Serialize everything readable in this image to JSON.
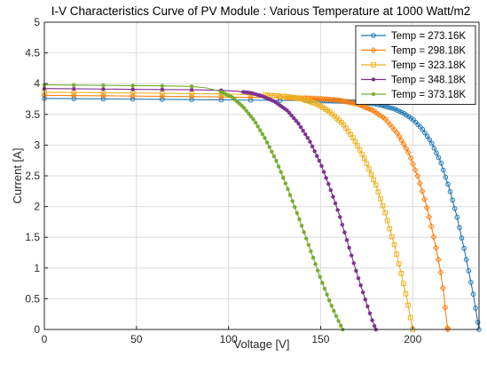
{
  "chart_data": {
    "type": "line",
    "title": "I-V Characteristics Curve of PV Module : Various Temperature at 1000 Watt/m2",
    "xlabel": "Voltage [V]",
    "ylabel": "Current [A]",
    "xlim": [
      0,
      236
    ],
    "ylim": [
      0,
      5
    ],
    "xticks": [
      "0",
      "50",
      "100",
      "150",
      "200"
    ],
    "xtick_values": [
      0,
      50,
      100,
      150,
      200
    ],
    "yticks": [
      "0",
      "0.5",
      "1",
      "1.5",
      "2",
      "2.5",
      "3",
      "3.5",
      "4",
      "4.5",
      "5"
    ],
    "ytick_values": [
      0,
      0.5,
      1,
      1.5,
      2,
      2.5,
      3,
      3.5,
      4,
      4.5,
      5
    ],
    "grid": true,
    "legend_position": "top-right",
    "series": [
      {
        "name": "Temp = 273.16K",
        "color": "#1f77b4",
        "marker": "circle",
        "points": [
          [
            0,
            3.76
          ],
          [
            20,
            3.755
          ],
          [
            40,
            3.75
          ],
          [
            60,
            3.745
          ],
          [
            80,
            3.74
          ],
          [
            100,
            3.735
          ],
          [
            120,
            3.73
          ],
          [
            140,
            3.725
          ],
          [
            160,
            3.715
          ],
          [
            170,
            3.7
          ],
          [
            180,
            3.67
          ],
          [
            190,
            3.59
          ],
          [
            195,
            3.52
          ],
          [
            200,
            3.42
          ],
          [
            205,
            3.27
          ],
          [
            210,
            3.05
          ],
          [
            215,
            2.74
          ],
          [
            220,
            2.28
          ],
          [
            224,
            1.84
          ],
          [
            228,
            1.3
          ],
          [
            231,
            0.86
          ],
          [
            233,
            0.55
          ],
          [
            235,
            0.18
          ],
          [
            236,
            0.0
          ]
        ]
      },
      {
        "name": "Temp = 298.18K",
        "color": "#ff7f0e",
        "marker": "diamond",
        "points": [
          [
            0,
            3.81
          ],
          [
            20,
            3.805
          ],
          [
            40,
            3.8
          ],
          [
            60,
            3.795
          ],
          [
            80,
            3.79
          ],
          [
            100,
            3.78
          ],
          [
            120,
            3.775
          ],
          [
            140,
            3.765
          ],
          [
            150,
            3.755
          ],
          [
            160,
            3.73
          ],
          [
            170,
            3.67
          ],
          [
            178,
            3.57
          ],
          [
            185,
            3.43
          ],
          [
            192,
            3.18
          ],
          [
            198,
            2.86
          ],
          [
            203,
            2.47
          ],
          [
            207,
            2.06
          ],
          [
            210,
            1.7
          ],
          [
            213,
            1.28
          ],
          [
            215,
            0.96
          ],
          [
            217,
            0.55
          ],
          [
            218,
            0.25
          ],
          [
            219,
            0.0
          ]
        ]
      },
      {
        "name": "Temp = 323.18K",
        "color": "#edb120",
        "marker": "square",
        "points": [
          [
            0,
            3.86
          ],
          [
            20,
            3.855
          ],
          [
            40,
            3.85
          ],
          [
            60,
            3.845
          ],
          [
            80,
            3.84
          ],
          [
            100,
            3.83
          ],
          [
            120,
            3.815
          ],
          [
            132,
            3.79
          ],
          [
            140,
            3.75
          ],
          [
            148,
            3.67
          ],
          [
            155,
            3.54
          ],
          [
            162,
            3.35
          ],
          [
            168,
            3.1
          ],
          [
            174,
            2.77
          ],
          [
            180,
            2.35
          ],
          [
            185,
            1.9
          ],
          [
            190,
            1.38
          ],
          [
            194,
            0.88
          ],
          [
            197,
            0.48
          ],
          [
            199,
            0.15
          ],
          [
            200,
            0.0
          ]
        ]
      },
      {
        "name": "Temp = 348.18K",
        "color": "#7e2f8e",
        "marker": "asterisk",
        "points": [
          [
            0,
            3.92
          ],
          [
            20,
            3.915
          ],
          [
            40,
            3.91
          ],
          [
            60,
            3.905
          ],
          [
            80,
            3.9
          ],
          [
            97,
            3.89
          ],
          [
            105,
            3.875
          ],
          [
            112,
            3.85
          ],
          [
            118,
            3.8
          ],
          [
            125,
            3.71
          ],
          [
            132,
            3.56
          ],
          [
            138,
            3.35
          ],
          [
            144,
            3.07
          ],
          [
            150,
            2.7
          ],
          [
            155,
            2.31
          ],
          [
            160,
            1.88
          ],
          [
            165,
            1.38
          ],
          [
            170,
            0.88
          ],
          [
            175,
            0.42
          ],
          [
            178,
            0.15
          ],
          [
            180,
            0.0
          ]
        ]
      },
      {
        "name": "Temp = 373.18K",
        "color": "#77ac30",
        "marker": "asterisk",
        "points": [
          [
            0,
            3.98
          ],
          [
            20,
            3.975
          ],
          [
            40,
            3.97
          ],
          [
            60,
            3.965
          ],
          [
            80,
            3.955
          ],
          [
            88,
            3.93
          ],
          [
            95,
            3.88
          ],
          [
            102,
            3.78
          ],
          [
            108,
            3.62
          ],
          [
            114,
            3.4
          ],
          [
            120,
            3.1
          ],
          [
            126,
            2.74
          ],
          [
            132,
            2.3
          ],
          [
            138,
            1.83
          ],
          [
            144,
            1.33
          ],
          [
            150,
            0.83
          ],
          [
            155,
            0.45
          ],
          [
            159,
            0.18
          ],
          [
            162,
            0.0
          ]
        ]
      }
    ]
  }
}
